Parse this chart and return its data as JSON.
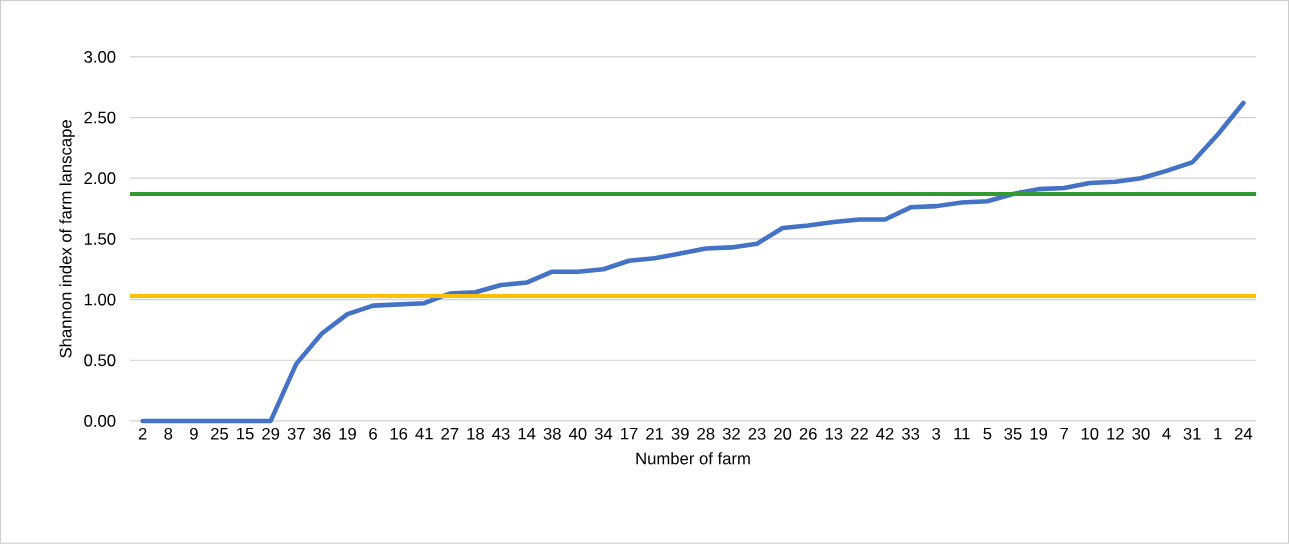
{
  "chart_data": {
    "type": "line",
    "xlabel": "Number of farm",
    "ylabel": "Shannon index of farm lanscape",
    "categories": [
      "2",
      "8",
      "9",
      "25",
      "15",
      "29",
      "37",
      "36",
      "19",
      "6",
      "16",
      "41",
      "27",
      "18",
      "43",
      "14",
      "38",
      "40",
      "34",
      "17",
      "21",
      "39",
      "28",
      "32",
      "23",
      "20",
      "26",
      "13",
      "22",
      "42",
      "33",
      "3",
      "11",
      "5",
      "35",
      "19",
      "7",
      "10",
      "12",
      "30",
      "4",
      "31",
      "1",
      "24"
    ],
    "series": [
      {
        "color": "#4472c4",
        "values": [
          0,
          0,
          0,
          0,
          0,
          0,
          0.47,
          0.72,
          0.88,
          0.95,
          0.96,
          0.97,
          1.05,
          1.06,
          1.12,
          1.14,
          1.23,
          1.23,
          1.25,
          1.32,
          1.34,
          1.38,
          1.42,
          1.43,
          1.46,
          1.59,
          1.61,
          1.64,
          1.66,
          1.66,
          1.76,
          1.77,
          1.8,
          1.81,
          1.87,
          1.91,
          1.92,
          1.96,
          1.97,
          2.0,
          2.06,
          2.13,
          2.36,
          2.62
        ]
      }
    ],
    "ylim": [
      0,
      3
    ],
    "yticks": [
      {
        "value": 0,
        "label": "0.00"
      },
      {
        "value": 0.5,
        "label": "0.50"
      },
      {
        "value": 1,
        "label": "1.00"
      },
      {
        "value": 1.5,
        "label": "1.50"
      },
      {
        "value": 2,
        "label": "2.00"
      },
      {
        "value": 2.5,
        "label": "2.50"
      },
      {
        "value": 3,
        "label": "3.00"
      }
    ],
    "ref_lines": [
      {
        "axis": "y",
        "value": 1.87,
        "color": "#339933"
      },
      {
        "axis": "y",
        "value": 1.03,
        "color": "#ffc000"
      }
    ],
    "grid": "y",
    "marker": "none",
    "line_style": "solid"
  }
}
